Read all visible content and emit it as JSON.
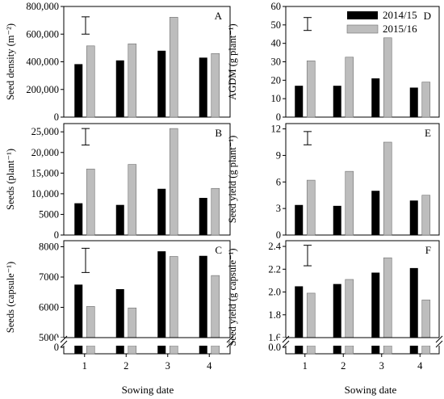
{
  "colors": {
    "series_2014": "#000000",
    "series_2015": "#bdbdbd",
    "frame": "#000000",
    "background": "#ffffff"
  },
  "chart_data": [
    {
      "type": "bar",
      "panel_letter": "A",
      "categories": [
        "1",
        "2",
        "3",
        "4"
      ],
      "series": [
        {
          "name": "2014/15",
          "values": [
            383000,
            410000,
            480000,
            430000
          ]
        },
        {
          "name": "2015/16",
          "values": [
            515000,
            530000,
            722000,
            460000
          ]
        }
      ],
      "ylabel": "Seed density (m⁻²)",
      "xlabel": "",
      "ylim": [
        0,
        800000
      ],
      "yticks": [
        0,
        200000,
        400000,
        600000,
        800000
      ],
      "ytick_labels": [
        "0",
        "200,000",
        "400,000",
        "600,000",
        "800,000"
      ],
      "error_bar": [
        600000,
        725000
      ],
      "axis_break": false,
      "show_xticklabels": false
    },
    {
      "type": "bar",
      "panel_letter": "B",
      "categories": [
        "1",
        "2",
        "3",
        "4"
      ],
      "series": [
        {
          "name": "2014/15",
          "values": [
            7700,
            7300,
            11200,
            9000
          ]
        },
        {
          "name": "2015/16",
          "values": [
            16000,
            17100,
            25800,
            11300
          ]
        }
      ],
      "ylabel": "Seeds (plant⁻¹)",
      "xlabel": "",
      "ylim": [
        0,
        27000
      ],
      "yticks": [
        0,
        5000,
        10000,
        15000,
        20000,
        25000
      ],
      "ytick_labels": [
        "0",
        "5000",
        "10,000",
        "15,000",
        "20,000",
        "25,000"
      ],
      "error_bar": [
        21800,
        25800
      ],
      "axis_break": false,
      "show_xticklabels": false
    },
    {
      "type": "bar",
      "panel_letter": "C",
      "categories": [
        "1",
        "2",
        "3",
        "4"
      ],
      "series": [
        {
          "name": "2014/15",
          "values": [
            6750,
            6600,
            7850,
            7700
          ]
        },
        {
          "name": "2015/16",
          "values": [
            6030,
            5980,
            7680,
            7050
          ]
        }
      ],
      "ylabel": "Seeds (capsule⁻¹)",
      "xlabel": "",
      "ylim": [
        5000,
        8200
      ],
      "yticks": [
        5000,
        6000,
        7000,
        8000
      ],
      "ytick_labels": [
        "5000",
        "6000",
        "7000",
        "8000"
      ],
      "error_bar": [
        7150,
        7950
      ],
      "axis_break": true,
      "show_xticklabels": true
    },
    {
      "type": "bar",
      "panel_letter": "D",
      "categories": [
        "1",
        "2",
        "3",
        "4"
      ],
      "series": [
        {
          "name": "2014/15",
          "values": [
            17,
            17,
            21,
            16
          ]
        },
        {
          "name": "2015/16",
          "values": [
            30.5,
            32.5,
            43,
            19
          ]
        }
      ],
      "ylabel": "AGDM (g plant⁻¹)",
      "xlabel": "",
      "ylim": [
        0,
        60
      ],
      "yticks": [
        0,
        10,
        20,
        30,
        40,
        50,
        60
      ],
      "ytick_labels": [
        "0",
        "10",
        "20",
        "30",
        "40",
        "50",
        "60"
      ],
      "error_bar": [
        47,
        54
      ],
      "axis_break": false,
      "show_xticklabels": false,
      "legend": {
        "position": "top-right",
        "entries": [
          "2014/15",
          "2015/16"
        ]
      }
    },
    {
      "type": "bar",
      "panel_letter": "E",
      "categories": [
        "1",
        "2",
        "3",
        "4"
      ],
      "series": [
        {
          "name": "2014/15",
          "values": [
            3.4,
            3.3,
            5.0,
            3.9
          ]
        },
        {
          "name": "2015/16",
          "values": [
            6.2,
            7.2,
            10.5,
            4.5
          ]
        }
      ],
      "ylabel": "Seed yield (g plant⁻¹)",
      "xlabel": "",
      "ylim": [
        0,
        12.6
      ],
      "yticks": [
        0,
        3,
        6,
        9,
        12
      ],
      "ytick_labels": [
        "0",
        "3",
        "6",
        "9",
        "12"
      ],
      "error_bar": [
        10.2,
        11.7
      ],
      "axis_break": false,
      "show_xticklabels": false
    },
    {
      "type": "bar",
      "panel_letter": "F",
      "categories": [
        "1",
        "2",
        "3",
        "4"
      ],
      "series": [
        {
          "name": "2014/15",
          "values": [
            2.05,
            2.07,
            2.17,
            2.21
          ]
        },
        {
          "name": "2015/16",
          "values": [
            1.99,
            2.11,
            2.3,
            1.93
          ]
        }
      ],
      "ylabel": "Seed yield (g capsule⁻¹)",
      "xlabel": "",
      "ylim": [
        1.6,
        2.45
      ],
      "yticks": [
        1.6,
        1.8,
        2.0,
        2.2,
        2.4
      ],
      "ytick_labels": [
        "1.6",
        "1.8",
        "2.0",
        "2.2",
        "2.4"
      ],
      "error_bar": [
        2.23,
        2.41
      ],
      "axis_break": true,
      "show_xticklabels": true
    }
  ],
  "break_tick_labels": [
    "0",
    "0.0"
  ],
  "shared_xlabel": "Sowing date"
}
